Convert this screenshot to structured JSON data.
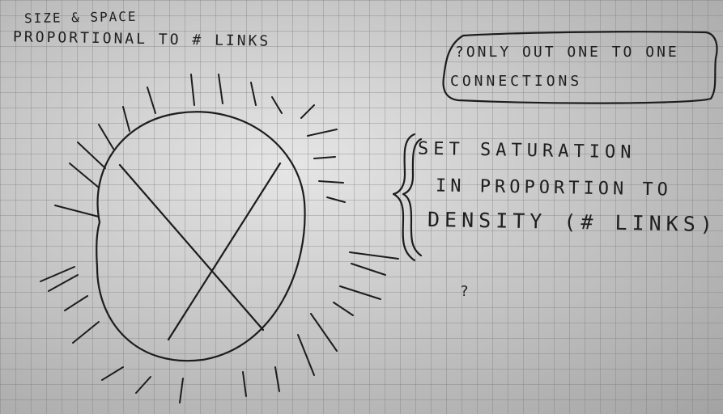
{
  "notes": {
    "heading_line1": "SIZE & SPACE",
    "heading_line2": "PROPORTIONAL TO # LINKS",
    "box_line1": "?ONLY OUT ONE TO ONE",
    "box_line2": "CONNECTIONS",
    "brace_line1": "SET SATURATION",
    "brace_line2": "IN PROPORTION TO",
    "brace_line3": "DENSITY (# LINKS)",
    "stray_mark": "?"
  }
}
